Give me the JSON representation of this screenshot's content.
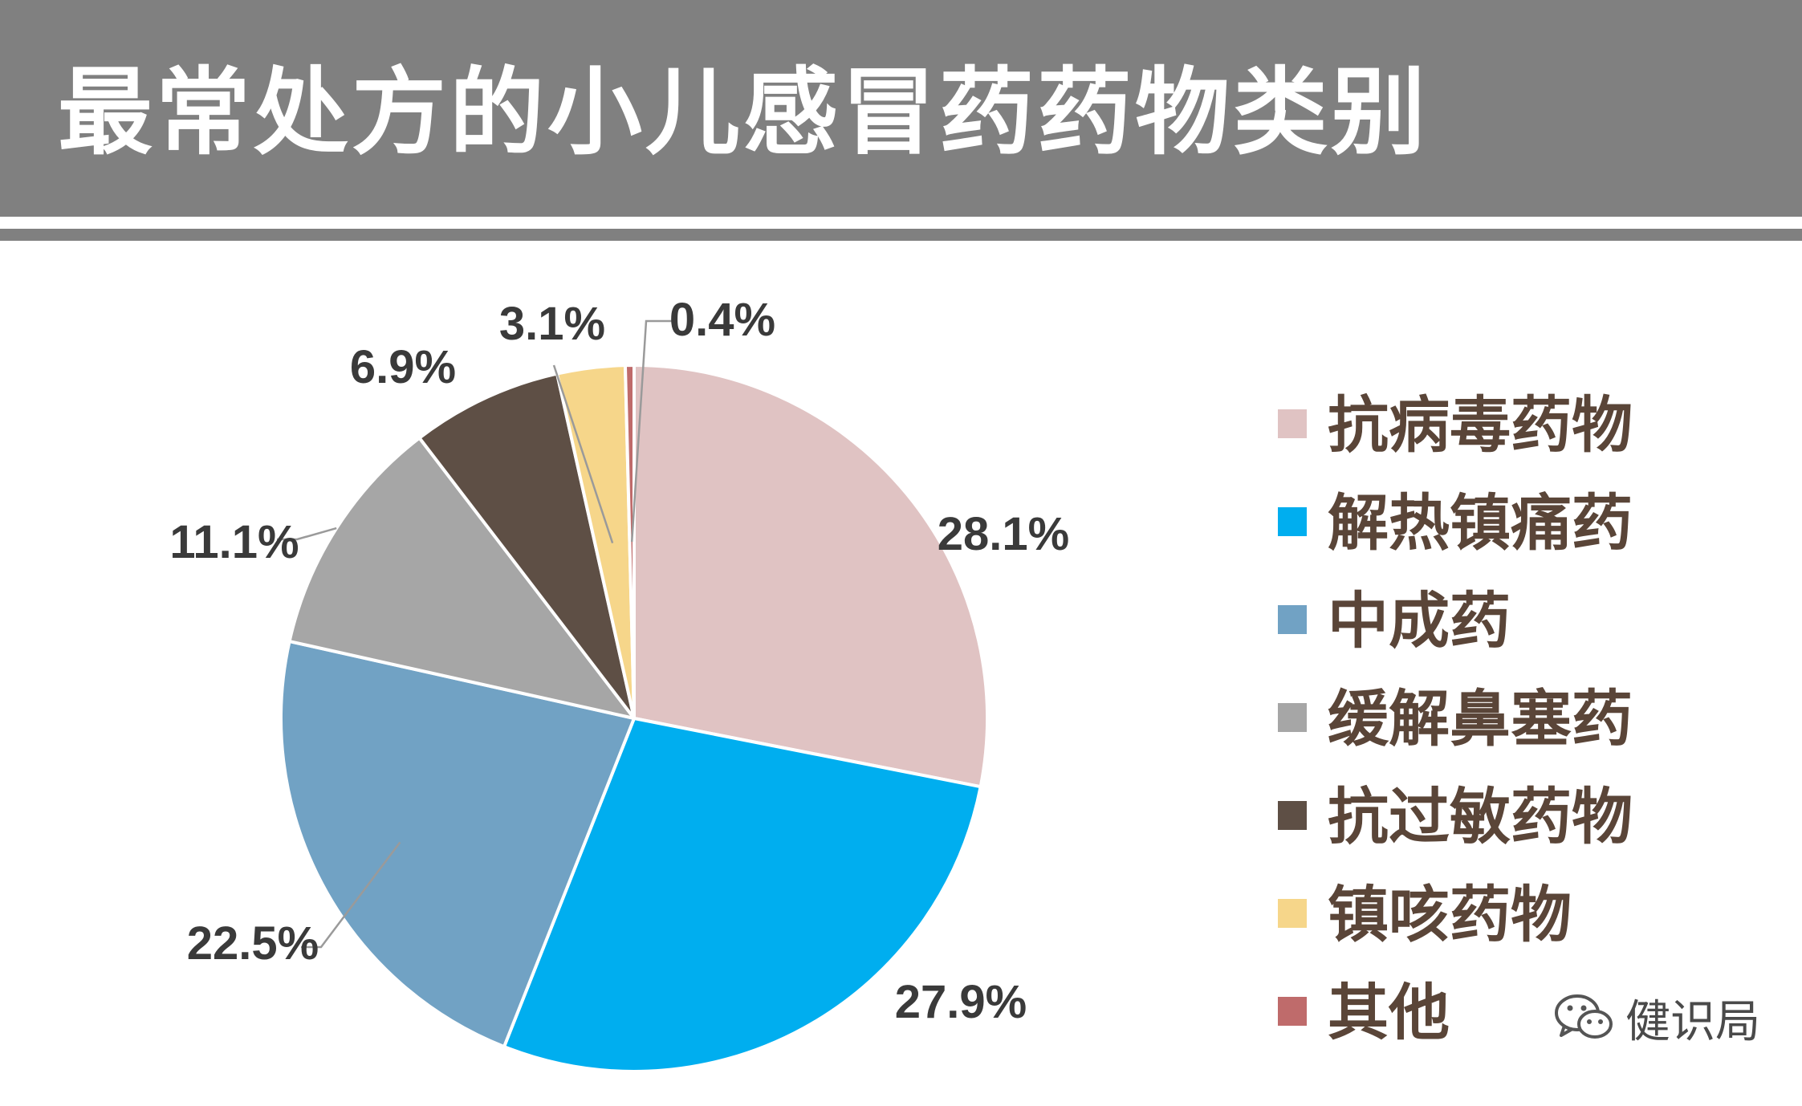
{
  "header": {
    "title": "最常处方的小儿感冒药药物类别"
  },
  "chart_data": {
    "type": "pie",
    "title": "最常处方的小儿感冒药药物类别",
    "slices": [
      {
        "label": "抗病毒药物",
        "value": 28.1,
        "value_label": "28.1%",
        "color": "#E0C3C3"
      },
      {
        "label": "解热镇痛药",
        "value": 27.9,
        "value_label": "27.9%",
        "color": "#00AEEF"
      },
      {
        "label": "中成药",
        "value": 22.5,
        "value_label": "22.5%",
        "color": "#71A2C4"
      },
      {
        "label": "缓解鼻塞药",
        "value": 11.1,
        "value_label": "11.1%",
        "color": "#A6A6A6"
      },
      {
        "label": "抗过敏药物",
        "value": 6.9,
        "value_label": "6.9%",
        "color": "#5E4F45"
      },
      {
        "label": "镇咳药物",
        "value": 3.1,
        "value_label": "3.1%",
        "color": "#F6D68A"
      },
      {
        "label": "其他",
        "value": 0.4,
        "value_label": "0.4%",
        "color": "#BF6B6B"
      }
    ],
    "legend_position": "right",
    "start_angle": "top, clockwise"
  },
  "watermark": {
    "text": "健识局",
    "icon": "wechat-icon"
  }
}
